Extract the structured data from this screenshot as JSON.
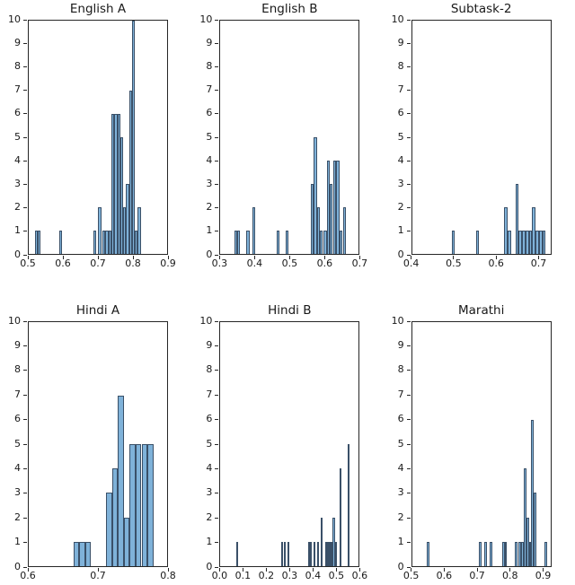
{
  "figure": {
    "background": "#ffffff",
    "bar_fill": "#7fb2d9",
    "bar_edge": "#3a5068",
    "spine_color": "#262626",
    "text_color": "#191919"
  },
  "chart_data": [
    {
      "type": "bar",
      "histogram": true,
      "title": "English A",
      "xlabel": "",
      "ylabel": "",
      "xlim": [
        0.5,
        0.9
      ],
      "ylim": [
        0,
        10
      ],
      "xticks": [
        0.5,
        0.6,
        0.7,
        0.8,
        0.9
      ],
      "xtick_labels": [
        "0.5",
        "0.6",
        "0.7",
        "0.8",
        "0.9"
      ],
      "yticks": [
        0,
        1,
        2,
        3,
        4,
        5,
        6,
        7,
        8,
        9,
        10
      ],
      "ytick_labels": [
        "0",
        "1",
        "2",
        "3",
        "4",
        "5",
        "6",
        "7",
        "8",
        "9",
        "10"
      ],
      "bin_width": 0.0085,
      "bars": [
        {
          "x": 0.5175,
          "count": 1
        },
        {
          "x": 0.526,
          "count": 1
        },
        {
          "x": 0.5875,
          "count": 1
        },
        {
          "x": 0.6875,
          "count": 1
        },
        {
          "x": 0.701,
          "count": 2
        },
        {
          "x": 0.7135,
          "count": 1
        },
        {
          "x": 0.722,
          "count": 1
        },
        {
          "x": 0.7305,
          "count": 1
        },
        {
          "x": 0.739,
          "count": 6
        },
        {
          "x": 0.7475,
          "count": 6
        },
        {
          "x": 0.756,
          "count": 6
        },
        {
          "x": 0.7645,
          "count": 5
        },
        {
          "x": 0.773,
          "count": 2
        },
        {
          "x": 0.7815,
          "count": 3
        },
        {
          "x": 0.79,
          "count": 7
        },
        {
          "x": 0.7985,
          "count": 10
        },
        {
          "x": 0.807,
          "count": 1
        },
        {
          "x": 0.8155,
          "count": 2
        }
      ]
    },
    {
      "type": "bar",
      "histogram": true,
      "title": "English B",
      "xlabel": "",
      "ylabel": "",
      "xlim": [
        0.3,
        0.7
      ],
      "ylim": [
        0,
        10
      ],
      "xticks": [
        0.3,
        0.4,
        0.5,
        0.6,
        0.7
      ],
      "xtick_labels": [
        "0.3",
        "0.4",
        "0.5",
        "0.6",
        "0.7"
      ],
      "yticks": [
        0,
        1,
        2,
        3,
        4,
        5,
        6,
        7,
        8,
        9,
        10
      ],
      "ytick_labels": [
        "0",
        "1",
        "2",
        "3",
        "4",
        "5",
        "6",
        "7",
        "8",
        "9",
        "10"
      ],
      "bin_width": 0.0085,
      "bars": [
        {
          "x": 0.34,
          "count": 1
        },
        {
          "x": 0.3485,
          "count": 1
        },
        {
          "x": 0.3755,
          "count": 1
        },
        {
          "x": 0.3925,
          "count": 2
        },
        {
          "x": 0.463,
          "count": 1
        },
        {
          "x": 0.489,
          "count": 1
        },
        {
          "x": 0.562,
          "count": 3
        },
        {
          "x": 0.5705,
          "count": 5
        },
        {
          "x": 0.579,
          "count": 2
        },
        {
          "x": 0.5875,
          "count": 1
        },
        {
          "x": 0.5985,
          "count": 1
        },
        {
          "x": 0.607,
          "count": 4
        },
        {
          "x": 0.6155,
          "count": 3
        },
        {
          "x": 0.6265,
          "count": 4
        },
        {
          "x": 0.635,
          "count": 4
        },
        {
          "x": 0.6435,
          "count": 1
        },
        {
          "x": 0.655,
          "count": 2
        }
      ]
    },
    {
      "type": "bar",
      "histogram": true,
      "title": "Subtask-2",
      "xlabel": "",
      "ylabel": "",
      "xlim": [
        0.4,
        0.73
      ],
      "ylim": [
        0,
        10
      ],
      "xticks": [
        0.4,
        0.5,
        0.6,
        0.7
      ],
      "xtick_labels": [
        "0.4",
        "0.5",
        "0.6",
        "0.7"
      ],
      "yticks": [
        0,
        1,
        2,
        3,
        4,
        5,
        6,
        7,
        8,
        9,
        10
      ],
      "ytick_labels": [
        "0",
        "1",
        "2",
        "3",
        "4",
        "5",
        "6",
        "7",
        "8",
        "9",
        "10"
      ],
      "bin_width": 0.008,
      "bars": [
        {
          "x": 0.494,
          "count": 1
        },
        {
          "x": 0.552,
          "count": 1
        },
        {
          "x": 0.62,
          "count": 2
        },
        {
          "x": 0.628,
          "count": 1
        },
        {
          "x": 0.6465,
          "count": 3
        },
        {
          "x": 0.6545,
          "count": 1
        },
        {
          "x": 0.6625,
          "count": 1
        },
        {
          "x": 0.6705,
          "count": 1
        },
        {
          "x": 0.6785,
          "count": 1
        },
        {
          "x": 0.6865,
          "count": 2
        },
        {
          "x": 0.6945,
          "count": 1
        },
        {
          "x": 0.7025,
          "count": 1
        },
        {
          "x": 0.7105,
          "count": 1
        }
      ]
    },
    {
      "type": "bar",
      "histogram": true,
      "title": "Hindi A",
      "xlabel": "",
      "ylabel": "",
      "xlim": [
        0.6,
        0.8
      ],
      "ylim": [
        0,
        10
      ],
      "xticks": [
        0.6,
        0.7,
        0.8
      ],
      "xtick_labels": [
        "0.6",
        "0.7",
        "0.8"
      ],
      "yticks": [
        0,
        1,
        2,
        3,
        4,
        5,
        6,
        7,
        8,
        9,
        10
      ],
      "ytick_labels": [
        "0",
        "1",
        "2",
        "3",
        "4",
        "5",
        "6",
        "7",
        "8",
        "9",
        "10"
      ],
      "bin_width": 0.0085,
      "bars": [
        {
          "x": 0.6645,
          "count": 1
        },
        {
          "x": 0.673,
          "count": 1
        },
        {
          "x": 0.6815,
          "count": 1
        },
        {
          "x": 0.712,
          "count": 3
        },
        {
          "x": 0.7205,
          "count": 4
        },
        {
          "x": 0.729,
          "count": 7
        },
        {
          "x": 0.7375,
          "count": 2
        },
        {
          "x": 0.746,
          "count": 5
        },
        {
          "x": 0.7545,
          "count": 5
        },
        {
          "x": 0.763,
          "count": 5
        },
        {
          "x": 0.7715,
          "count": 5
        }
      ]
    },
    {
      "type": "bar",
      "histogram": true,
      "title": "Hindi B",
      "xlabel": "",
      "ylabel": "",
      "xlim": [
        0.0,
        0.6
      ],
      "ylim": [
        0,
        10
      ],
      "xticks": [
        0.0,
        0.1,
        0.2,
        0.3,
        0.4,
        0.5,
        0.6
      ],
      "xtick_labels": [
        "0.0",
        "0.1",
        "0.2",
        "0.3",
        "0.4",
        "0.5",
        "0.6"
      ],
      "yticks": [
        0,
        1,
        2,
        3,
        4,
        5,
        6,
        7,
        8,
        9,
        10
      ],
      "ytick_labels": [
        "0",
        "1",
        "2",
        "3",
        "4",
        "5",
        "6",
        "7",
        "8",
        "9",
        "10"
      ],
      "bin_width": 0.008,
      "bars": [
        {
          "x": 0.068,
          "count": 1
        },
        {
          "x": 0.264,
          "count": 1
        },
        {
          "x": 0.2755,
          "count": 1
        },
        {
          "x": 0.291,
          "count": 1
        },
        {
          "x": 0.379,
          "count": 1
        },
        {
          "x": 0.387,
          "count": 1
        },
        {
          "x": 0.402,
          "count": 1
        },
        {
          "x": 0.419,
          "count": 1
        },
        {
          "x": 0.4335,
          "count": 2
        },
        {
          "x": 0.4555,
          "count": 1
        },
        {
          "x": 0.4635,
          "count": 1
        },
        {
          "x": 0.4715,
          "count": 1
        },
        {
          "x": 0.4795,
          "count": 1
        },
        {
          "x": 0.4875,
          "count": 2
        },
        {
          "x": 0.4955,
          "count": 1
        },
        {
          "x": 0.5185,
          "count": 4
        },
        {
          "x": 0.5505,
          "count": 5
        }
      ]
    },
    {
      "type": "bar",
      "histogram": true,
      "title": "Marathi",
      "xlabel": "",
      "ylabel": "",
      "xlim": [
        0.5,
        0.925
      ],
      "ylim": [
        0,
        10
      ],
      "xticks": [
        0.5,
        0.6,
        0.7,
        0.8,
        0.9
      ],
      "xtick_labels": [
        "0.5",
        "0.6",
        "0.7",
        "0.8",
        "0.9"
      ],
      "yticks": [
        0,
        1,
        2,
        3,
        4,
        5,
        6,
        7,
        8,
        9,
        10
      ],
      "ytick_labels": [
        "0",
        "1",
        "2",
        "3",
        "4",
        "5",
        "6",
        "7",
        "8",
        "9",
        "10"
      ],
      "bin_width": 0.008,
      "bars": [
        {
          "x": 0.545,
          "count": 1
        },
        {
          "x": 0.705,
          "count": 1
        },
        {
          "x": 0.722,
          "count": 1
        },
        {
          "x": 0.739,
          "count": 1
        },
        {
          "x": 0.776,
          "count": 1
        },
        {
          "x": 0.784,
          "count": 1
        },
        {
          "x": 0.8145,
          "count": 1
        },
        {
          "x": 0.8265,
          "count": 1
        },
        {
          "x": 0.8345,
          "count": 1
        },
        {
          "x": 0.8425,
          "count": 4
        },
        {
          "x": 0.8505,
          "count": 2
        },
        {
          "x": 0.8585,
          "count": 1
        },
        {
          "x": 0.8665,
          "count": 6
        },
        {
          "x": 0.8745,
          "count": 3
        },
        {
          "x": 0.9065,
          "count": 1
        }
      ]
    }
  ]
}
